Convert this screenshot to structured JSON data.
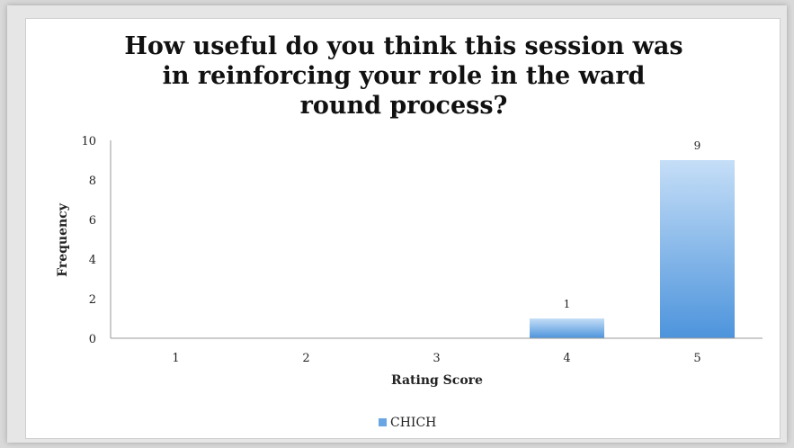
{
  "chart_data": {
    "type": "bar",
    "title_lines": [
      "How useful do you think this session was",
      "in reinforcing your role in the ward",
      "round process?"
    ],
    "categories": [
      "1",
      "2",
      "3",
      "4",
      "5"
    ],
    "series": [
      {
        "name": "CHICH",
        "values": [
          0,
          0,
          0,
          1,
          9
        ]
      }
    ],
    "data_labels": [
      "",
      "",
      "",
      "1",
      "9"
    ],
    "xlabel": "Rating Score",
    "ylabel": "Frequency",
    "ylim": [
      0,
      10
    ],
    "yticks": [
      "0",
      "2",
      "4",
      "6",
      "8",
      "10"
    ],
    "grid": false,
    "legend_position": "bottom",
    "colors": {
      "bar_top": "#c5def7",
      "bar_bottom": "#4d94dc",
      "axis": "#999999"
    }
  }
}
